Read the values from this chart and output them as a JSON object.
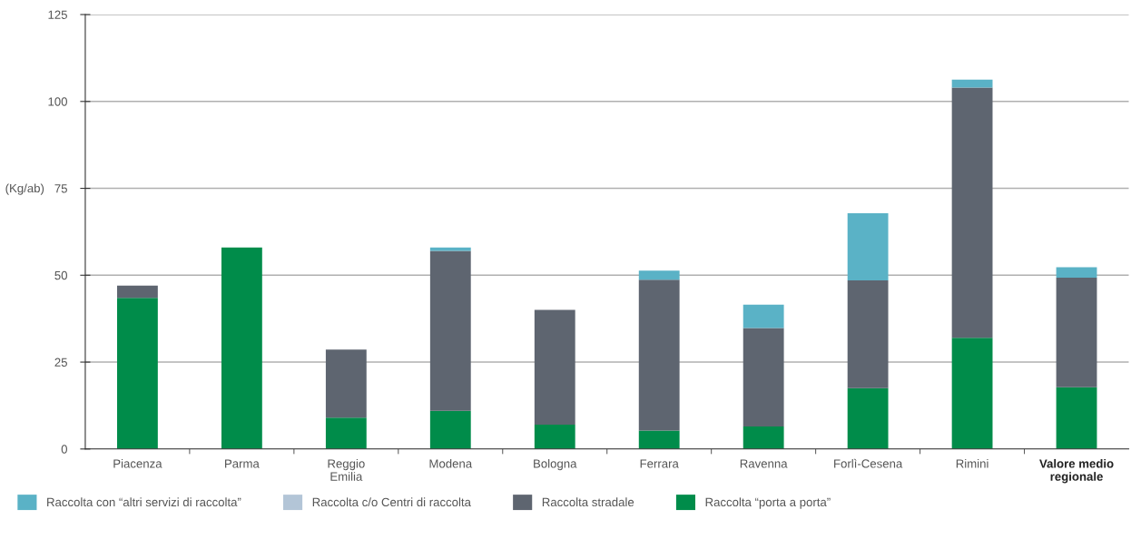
{
  "chart_data": {
    "type": "bar",
    "stacked": true,
    "ylabel": "(Kg/ab)",
    "categories": [
      "Piacenza",
      "Parma",
      "Reggio\nEmilia",
      "Modena",
      "Bologna",
      "Ferrara",
      "Ravenna",
      "Forlì-Cesena",
      "Rimini",
      "Valore medio\nregionale"
    ],
    "series": [
      {
        "name": "Raccolta “porta a porta”",
        "color": "#008c4a",
        "values": [
          43.5,
          58,
          9,
          11,
          7,
          5.3,
          6.5,
          17.5,
          32,
          17.8
        ]
      },
      {
        "name": "Raccolta stradale",
        "color": "#5e6570",
        "values": [
          3.5,
          null,
          19.6,
          46,
          33,
          43.4,
          28.3,
          31,
          72,
          31.5
        ]
      },
      {
        "name": "Raccolta c/o Centri di raccolta",
        "color": "#b3c5d7",
        "values": [
          null,
          null,
          null,
          null,
          null,
          null,
          null,
          null,
          null,
          null
        ]
      },
      {
        "name": "Raccolta con “altri servizi di raccolta”",
        "color": "#5ab2c6",
        "values": [
          null,
          null,
          null,
          1,
          null,
          2.6,
          6.7,
          19.3,
          2.3,
          3
        ]
      }
    ],
    "ylim": [
      0,
      125
    ],
    "yticks": [
      0,
      25,
      50,
      75,
      100,
      125
    ],
    "grid": "y",
    "legend": "bottom"
  }
}
